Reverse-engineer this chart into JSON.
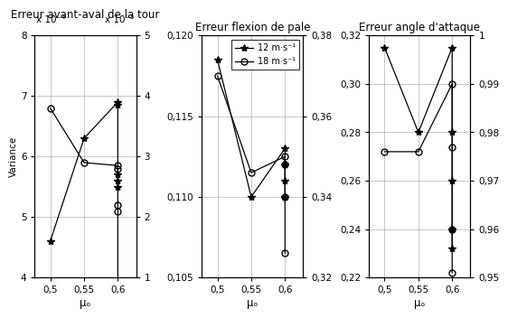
{
  "plot1": {
    "title": "Erreur avant-aval de la tour",
    "xlabel": "μₒ",
    "ylabel": "Variance",
    "x12": [
      0.5,
      0.55,
      0.6,
      0.6,
      0.6,
      0.6,
      0.6
    ],
    "y12": [
      4.6,
      6.3,
      6.9,
      6.85,
      5.7,
      5.6,
      5.5
    ],
    "x18": [
      0.5,
      0.55,
      0.6,
      0.6,
      0.6,
      0.6,
      0.6
    ],
    "y18": [
      6.8,
      5.9,
      5.85,
      5.8,
      5.2,
      5.1,
      1.9
    ],
    "ylim_left": [
      4,
      8
    ],
    "ylim_right": [
      1,
      5
    ],
    "yticks_left": [
      4,
      5,
      6,
      7,
      8
    ],
    "yticks_right": [
      1,
      2,
      3,
      4,
      5
    ],
    "left_label": "x 10⁻⁴",
    "right_label": "x 10⁻³"
  },
  "plot2": {
    "title": "Erreur flexion de pale",
    "xlabel": "μₒ",
    "x12": [
      0.5,
      0.55,
      0.6,
      0.6,
      0.6,
      0.6,
      0.6
    ],
    "y12": [
      0.1185,
      0.11,
      0.113,
      0.112,
      0.111,
      0.11,
      0.11
    ],
    "x18": [
      0.5,
      0.55,
      0.6,
      0.6,
      0.6,
      0.6
    ],
    "y18": [
      0.1175,
      0.1115,
      0.1125,
      0.112,
      0.11,
      0.1065
    ],
    "ylim_left": [
      0.105,
      0.12
    ],
    "ylim_right": [
      0.32,
      0.38
    ],
    "yticks_left": [
      0.105,
      0.11,
      0.115,
      0.12
    ],
    "yticks_right": [
      0.32,
      0.34,
      0.36,
      0.38
    ]
  },
  "plot3": {
    "title": "Erreur angle d'attaque",
    "xlabel": "μₒ",
    "x12": [
      0.5,
      0.55,
      0.6,
      0.6,
      0.6,
      0.6,
      0.6
    ],
    "y12": [
      0.315,
      0.28,
      0.315,
      0.28,
      0.26,
      0.24,
      0.232
    ],
    "x18": [
      0.5,
      0.55,
      0.6,
      0.6,
      0.6,
      0.6
    ],
    "y18": [
      0.272,
      0.272,
      0.3,
      0.274,
      0.24,
      0.222
    ],
    "ylim_left": [
      0.22,
      0.32
    ],
    "ylim_right": [
      0.95,
      1.0
    ],
    "yticks_left": [
      0.22,
      0.24,
      0.26,
      0.28,
      0.3,
      0.32
    ],
    "yticks_right": [
      0.95,
      0.96,
      0.97,
      0.98,
      0.99,
      1.0
    ]
  },
  "legend_labels": [
    "12 m·s⁻¹",
    "18 m·s⁻¹"
  ],
  "xticks": [
    0.5,
    0.55,
    0.6
  ],
  "xtick_labels": [
    "0,5",
    "0,55",
    "0,6"
  ],
  "color": "black",
  "fontsize": 7.5,
  "title_fontsize": 8.5
}
